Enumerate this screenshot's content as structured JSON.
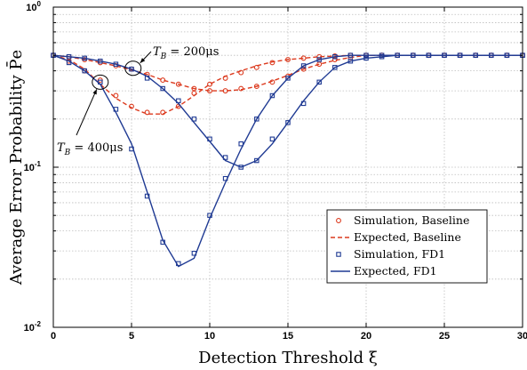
{
  "chart_data": {
    "type": "line",
    "xlabel": "Detection Threshold ξ",
    "ylabel": "Average Error Probability P̄e",
    "x_scale": "linear",
    "y_scale": "log",
    "xlim": [
      0,
      30
    ],
    "ylim": [
      0.01,
      1
    ],
    "xticks": [
      0,
      5,
      10,
      15,
      20,
      25,
      30
    ],
    "yticks": [
      {
        "value": 0.01,
        "base": "10",
        "exp": "-2"
      },
      {
        "value": 0.1,
        "base": "10",
        "exp": "-1"
      },
      {
        "value": 1,
        "base": "10",
        "exp": "0"
      }
    ],
    "grid": true,
    "legend_position": "bottom-right",
    "colors": {
      "baseline": "#dc3a1e",
      "fd1": "#1f3a93"
    },
    "series": [
      {
        "name": "Simulation, Baseline",
        "style": "markers-circle",
        "color_key": "baseline",
        "x": [
          0,
          1,
          2,
          3,
          4,
          5,
          6,
          7,
          8,
          9,
          10,
          11,
          12,
          13,
          14,
          15,
          16,
          17,
          18,
          19,
          20,
          21,
          22,
          23,
          24,
          25,
          26,
          27,
          28,
          29,
          30
        ],
        "y": [
          0.5,
          0.46,
          0.4,
          0.35,
          0.28,
          0.24,
          0.22,
          0.22,
          0.24,
          0.29,
          0.33,
          0.36,
          0.39,
          0.42,
          0.45,
          0.47,
          0.48,
          0.49,
          0.495,
          0.5,
          0.5,
          0.5,
          0.5,
          0.5,
          0.5,
          0.5,
          0.5,
          0.5,
          0.5,
          0.5,
          0.5
        ]
      },
      {
        "name": "Expected, Baseline",
        "style": "dashed",
        "color_key": "baseline",
        "x": [
          0,
          1,
          2,
          3,
          4,
          5,
          6,
          7,
          8,
          9,
          10,
          11,
          12,
          13,
          14,
          15,
          16,
          17,
          18,
          19,
          20,
          21,
          22,
          23,
          24,
          25,
          26,
          27,
          28,
          29,
          30
        ],
        "y": [
          0.5,
          0.47,
          0.41,
          0.33,
          0.27,
          0.235,
          0.215,
          0.215,
          0.24,
          0.28,
          0.33,
          0.37,
          0.4,
          0.43,
          0.455,
          0.47,
          0.48,
          0.49,
          0.495,
          0.5,
          0.5,
          0.5,
          0.5,
          0.5,
          0.5,
          0.5,
          0.5,
          0.5,
          0.5,
          0.5,
          0.5
        ]
      },
      {
        "name": "Simulation, Baseline",
        "style": "markers-circle",
        "color_key": "baseline",
        "x": [
          0,
          1,
          2,
          3,
          4,
          5,
          6,
          7,
          8,
          9,
          10,
          11,
          12,
          13,
          14,
          15,
          16,
          17,
          18,
          19,
          20,
          21,
          22,
          23,
          24,
          25,
          26,
          27,
          28,
          29,
          30
        ],
        "y": [
          0.5,
          0.49,
          0.47,
          0.45,
          0.43,
          0.41,
          0.38,
          0.35,
          0.33,
          0.31,
          0.3,
          0.3,
          0.31,
          0.32,
          0.34,
          0.37,
          0.41,
          0.44,
          0.47,
          0.485,
          0.5,
          0.5,
          0.5,
          0.5,
          0.5,
          0.5,
          0.5,
          0.5,
          0.5,
          0.5,
          0.5
        ]
      },
      {
        "name": "Expected, Baseline",
        "style": "dashed",
        "color_key": "baseline",
        "x": [
          0,
          1,
          2,
          3,
          4,
          5,
          6,
          7,
          8,
          9,
          10,
          11,
          12,
          13,
          14,
          15,
          16,
          17,
          18,
          19,
          20,
          21,
          22,
          23,
          24,
          25,
          26,
          27,
          28,
          29,
          30
        ],
        "y": [
          0.5,
          0.49,
          0.47,
          0.45,
          0.43,
          0.405,
          0.38,
          0.35,
          0.33,
          0.31,
          0.3,
          0.3,
          0.305,
          0.32,
          0.345,
          0.375,
          0.41,
          0.44,
          0.465,
          0.485,
          0.5,
          0.5,
          0.5,
          0.5,
          0.5,
          0.5,
          0.5,
          0.5,
          0.5,
          0.5,
          0.5
        ]
      },
      {
        "name": "Simulation, FD1",
        "style": "markers-square",
        "color_key": "fd1",
        "x": [
          0,
          1,
          2,
          3,
          4,
          5,
          6,
          7,
          8,
          9,
          10,
          11,
          12,
          13,
          14,
          15,
          16,
          17,
          18,
          19,
          20,
          21,
          22,
          23,
          24,
          25,
          26,
          27,
          28,
          29,
          30
        ],
        "y": [
          0.5,
          0.45,
          0.4,
          0.34,
          0.23,
          0.13,
          0.066,
          0.034,
          0.025,
          0.029,
          0.05,
          0.085,
          0.14,
          0.2,
          0.28,
          0.36,
          0.43,
          0.47,
          0.49,
          0.5,
          0.5,
          0.5,
          0.5,
          0.5,
          0.5,
          0.5,
          0.5,
          0.5,
          0.5,
          0.5,
          0.5
        ]
      },
      {
        "name": "Expected, FD1",
        "style": "solid",
        "color_key": "fd1",
        "x": [
          0,
          1,
          2,
          3,
          4,
          5,
          6,
          7,
          8,
          9,
          10,
          11,
          12,
          13,
          14,
          15,
          16,
          17,
          18,
          19,
          20,
          21,
          22,
          23,
          24,
          25,
          26,
          27,
          28,
          29,
          30
        ],
        "y": [
          0.5,
          0.46,
          0.4,
          0.33,
          0.22,
          0.14,
          0.07,
          0.035,
          0.024,
          0.027,
          0.048,
          0.08,
          0.13,
          0.2,
          0.28,
          0.36,
          0.43,
          0.47,
          0.49,
          0.5,
          0.5,
          0.5,
          0.5,
          0.5,
          0.5,
          0.5,
          0.5,
          0.5,
          0.5,
          0.5,
          0.5
        ]
      },
      {
        "name": "Simulation, FD1",
        "style": "markers-square",
        "color_key": "fd1",
        "x": [
          0,
          1,
          2,
          3,
          4,
          5,
          6,
          7,
          8,
          9,
          10,
          11,
          12,
          13,
          14,
          15,
          16,
          17,
          18,
          19,
          20,
          21,
          22,
          23,
          24,
          25,
          26,
          27,
          28,
          29,
          30
        ],
        "y": [
          0.5,
          0.49,
          0.48,
          0.46,
          0.44,
          0.41,
          0.36,
          0.31,
          0.26,
          0.2,
          0.15,
          0.115,
          0.1,
          0.11,
          0.15,
          0.19,
          0.25,
          0.34,
          0.42,
          0.46,
          0.48,
          0.49,
          0.5,
          0.5,
          0.5,
          0.5,
          0.5,
          0.5,
          0.5,
          0.5,
          0.5
        ]
      },
      {
        "name": "Expected, FD1",
        "style": "solid",
        "color_key": "fd1",
        "x": [
          0,
          1,
          2,
          3,
          4,
          5,
          6,
          7,
          8,
          9,
          10,
          11,
          12,
          13,
          14,
          15,
          16,
          17,
          18,
          19,
          20,
          21,
          22,
          23,
          24,
          25,
          26,
          27,
          28,
          29,
          30
        ],
        "y": [
          0.5,
          0.49,
          0.48,
          0.46,
          0.44,
          0.41,
          0.37,
          0.31,
          0.25,
          0.19,
          0.145,
          0.11,
          0.1,
          0.11,
          0.14,
          0.19,
          0.26,
          0.34,
          0.42,
          0.46,
          0.48,
          0.49,
          0.5,
          0.5,
          0.5,
          0.5,
          0.5,
          0.5,
          0.5,
          0.5,
          0.5
        ]
      }
    ],
    "legend": [
      {
        "label": "Simulation, Baseline",
        "style": "markers-circle",
        "color_key": "baseline"
      },
      {
        "label": "Expected, Baseline",
        "style": "dashed",
        "color_key": "baseline"
      },
      {
        "label": "Simulation, FD1",
        "style": "markers-square",
        "color_key": "fd1"
      },
      {
        "label": "Expected, FD1",
        "style": "solid",
        "color_key": "fd1"
      }
    ],
    "annotations": [
      {
        "text": "T",
        "sub": "B",
        "rest": " = 200μs",
        "target": {
          "x": 5.1,
          "y": 0.415
        }
      },
      {
        "text": "T",
        "sub": "B",
        "rest": " = 400μs",
        "target": {
          "x": 3.0,
          "y": 0.34
        }
      }
    ]
  }
}
